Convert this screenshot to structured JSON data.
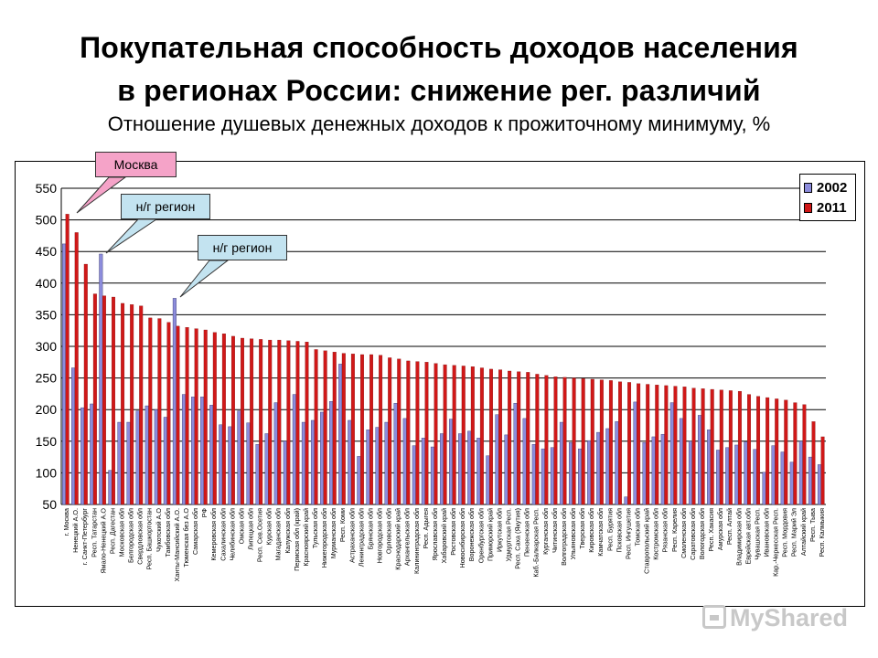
{
  "title_line_1": "Покупательная способность доходов населения",
  "title_line_2": "в регионах России: снижение рег. различий",
  "subtitle": "Отношение душевых денежных доходов к прожиточному минимуму, %",
  "callouts": {
    "moscow": "Москва",
    "ng_region_1": "н/г регион",
    "ng_region_2": "н/г регион"
  },
  "watermark": "MyShared",
  "colors": {
    "series_2002": "#8c8cdc",
    "series_2011": "#d01818",
    "grid": "#000000",
    "callout_pink": "#f5a3c8",
    "callout_blue": "#c3e3f0"
  },
  "chart_data": {
    "type": "bar",
    "title": "Отношение душевых денежных доходов к прожиточному минимуму, %",
    "xlabel": "",
    "ylabel": "",
    "ylim": [
      50,
      550
    ],
    "yticks": [
      50,
      100,
      150,
      200,
      250,
      300,
      350,
      400,
      450,
      500,
      550
    ],
    "grid": true,
    "legend_position": "top-right",
    "categories": [
      "г. Москва",
      "Ненецкий А.О.",
      "г. Санкт-Петербург",
      "Респ. Татарстан",
      "Ямало-Ненецкий А.О",
      "Респ. Дагестан",
      "Московская обл",
      "Белгородская обл",
      "Свердловская обл",
      "Респ. Башкортостан",
      "Чукотский А.О",
      "Тамбовская обл",
      "Ханты-Мансийский А.О.",
      "Тюменская без А.О",
      "Самарская обл",
      "РФ",
      "Кемеровская обл",
      "Сахалинская обл",
      "Челябинская обл",
      "Омская обл",
      "Липецкая обл",
      "Респ. Сев.Осетия",
      "Курская обл",
      "Магаданская обл",
      "Калужская обл",
      "Пермская обл (край)",
      "Красноярский край",
      "Тульская обл",
      "Нижегородская обл",
      "Мурманская обл",
      "Респ. Коми",
      "Астраханская обл",
      "Ленинградская обл",
      "Брянская обл",
      "Новгородская обл",
      "Орловская обл",
      "Краснодарский край",
      "Архангельская обл",
      "Калининградская обл",
      "Респ. Адыгея",
      "Ярославская обл",
      "Хабаровский край",
      "Ростовская обл",
      "Новосибирская обл",
      "Воронежская обл",
      "Оренбургская обл",
      "Приморский край",
      "Иркутская обл",
      "Удмуртская Респ.",
      "Респ. Саха (Якутия)",
      "Пензенская обл",
      "Каб.-Балкарская Респ.",
      "Курганская обл",
      "Читинская обл",
      "Волгоградская обл",
      "Ульяновская обл",
      "Тверская обл",
      "Кировская обл",
      "Камчатская обл",
      "Респ. Бурятия",
      "Псковская обл",
      "Респ. Ингушетия",
      "Томская обл",
      "Ставропольский край",
      "Костромская обл",
      "Рязанская обл",
      "Респ. Карелия",
      "Смоленская обл",
      "Саратовская обл",
      "Вологодская обл",
      "Респ. Хакасия",
      "Амурская обл",
      "Респ. Алтай",
      "Владимирская обл",
      "Еврейская авт.обл",
      "Чувашская Респ.",
      "Ивановская обл",
      "Кар.-Черкесская Респ.",
      "Респ. Мордовия",
      "Респ. Марий Эл",
      "Алтайский край",
      "Респ. Тыва",
      "Респ. Калмыкия"
    ],
    "series": [
      {
        "name": "2002",
        "values": [
          462,
          266,
          203,
          209,
          446,
          104,
          180,
          180,
          198,
          206,
          200,
          188,
          376,
          224,
          220,
          220,
          207,
          176,
          173,
          198,
          179,
          145,
          162,
          211,
          150,
          224,
          180,
          183,
          196,
          213,
          272,
          183,
          126,
          168,
          172,
          180,
          210,
          186,
          143,
          155,
          141,
          162,
          185,
          162,
          166,
          155,
          127,
          192,
          160,
          210,
          186,
          145,
          138,
          140,
          180,
          148,
          138,
          151,
          164,
          170,
          181,
          62,
          212,
          148,
          157,
          161,
          211,
          186,
          150,
          191,
          168,
          136,
          140,
          144,
          149,
          137,
          101,
          143,
          133,
          117,
          150,
          125,
          113
        ]
      },
      {
        "name": "2011",
        "values": [
          509,
          480,
          430,
          383,
          380,
          378,
          368,
          366,
          364,
          345,
          344,
          338,
          332,
          330,
          328,
          326,
          322,
          320,
          316,
          313,
          312,
          311,
          310,
          310,
          309,
          308,
          307,
          295,
          293,
          291,
          289,
          288,
          287,
          287,
          286,
          282,
          280,
          277,
          276,
          275,
          273,
          271,
          270,
          269,
          268,
          266,
          264,
          263,
          261,
          260,
          259,
          256,
          254,
          252,
          251,
          250,
          249,
          248,
          247,
          246,
          244,
          243,
          241,
          240,
          239,
          238,
          237,
          236,
          234,
          233,
          232,
          231,
          230,
          229,
          224,
          221,
          219,
          217,
          215,
          211,
          208,
          181,
          157
        ]
      }
    ]
  }
}
